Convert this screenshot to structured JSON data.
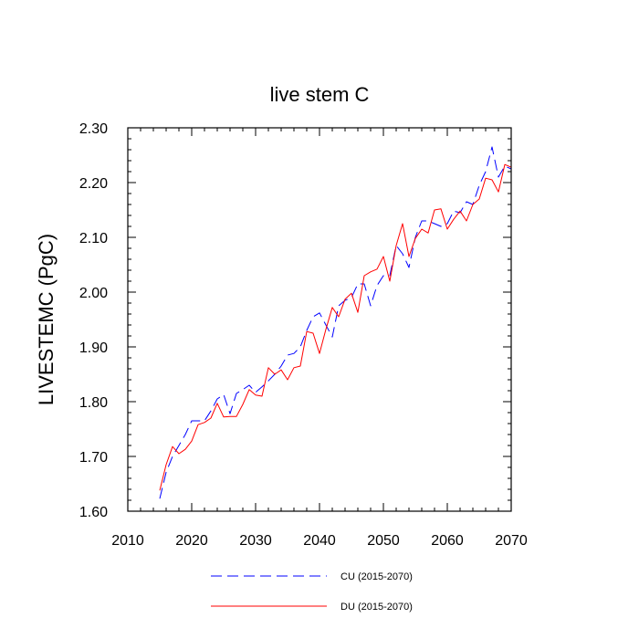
{
  "chart_data": {
    "type": "line",
    "title": "live stem C",
    "xlabel": "",
    "ylabel": "LIVESTEMC  (PgC)",
    "xlim": [
      2010,
      2070
    ],
    "ylim": [
      1.6,
      2.3
    ],
    "x_ticks": [
      2010,
      2020,
      2030,
      2040,
      2050,
      2060,
      2070
    ],
    "x_tick_labels": [
      "2010",
      "2020",
      "2030",
      "2040",
      "2050",
      "2060",
      "2070"
    ],
    "y_ticks": [
      1.6,
      1.7,
      1.8,
      1.9,
      2.0,
      2.1,
      2.2,
      2.3
    ],
    "y_tick_labels": [
      "1.60",
      "1.70",
      "1.80",
      "1.90",
      "2.00",
      "2.10",
      "2.20",
      "2.30"
    ],
    "grid": false,
    "legend_position": "bottom-center",
    "x": [
      2015,
      2016,
      2017,
      2018,
      2019,
      2020,
      2021,
      2022,
      2023,
      2024,
      2025,
      2026,
      2027,
      2028,
      2029,
      2030,
      2031,
      2032,
      2033,
      2034,
      2035,
      2036,
      2037,
      2038,
      2039,
      2040,
      2041,
      2042,
      2043,
      2044,
      2045,
      2046,
      2047,
      2048,
      2049,
      2050,
      2051,
      2052,
      2053,
      2054,
      2055,
      2056,
      2057,
      2058,
      2059,
      2060,
      2061,
      2062,
      2063,
      2064,
      2065,
      2066,
      2067,
      2068,
      2069,
      2070
    ],
    "series": [
      {
        "name": "CU (2015-2070)",
        "color": "#0000ff",
        "dash": "dashed",
        "values": [
          1.623,
          1.671,
          1.7,
          1.72,
          1.74,
          1.765,
          1.765,
          1.765,
          1.783,
          1.805,
          1.813,
          1.778,
          1.815,
          1.822,
          1.83,
          1.817,
          1.827,
          1.838,
          1.85,
          1.865,
          1.885,
          1.888,
          1.9,
          1.93,
          1.955,
          1.962,
          1.94,
          1.918,
          1.975,
          1.985,
          1.99,
          2.015,
          2.015,
          1.975,
          2.012,
          2.03,
          2.03,
          2.085,
          2.07,
          2.045,
          2.1,
          2.13,
          2.13,
          2.125,
          2.12,
          2.125,
          2.148,
          2.145,
          2.165,
          2.16,
          2.195,
          2.22,
          2.265,
          2.21,
          2.23,
          2.225
        ]
      },
      {
        "name": "DU (2015-2070)",
        "color": "#ff0000",
        "dash": "solid",
        "values": [
          1.638,
          1.685,
          1.718,
          1.705,
          1.713,
          1.728,
          1.758,
          1.762,
          1.77,
          1.797,
          1.772,
          1.773,
          1.773,
          1.795,
          1.822,
          1.812,
          1.81,
          1.862,
          1.85,
          1.858,
          1.84,
          1.862,
          1.865,
          1.928,
          1.925,
          1.888,
          1.932,
          1.972,
          1.955,
          1.987,
          1.998,
          1.963,
          2.03,
          2.037,
          2.042,
          2.065,
          2.02,
          2.085,
          2.125,
          2.065,
          2.098,
          2.115,
          2.108,
          2.15,
          2.152,
          2.115,
          2.133,
          2.148,
          2.13,
          2.16,
          2.17,
          2.208,
          2.205,
          2.183,
          2.233,
          2.228
        ]
      }
    ]
  }
}
